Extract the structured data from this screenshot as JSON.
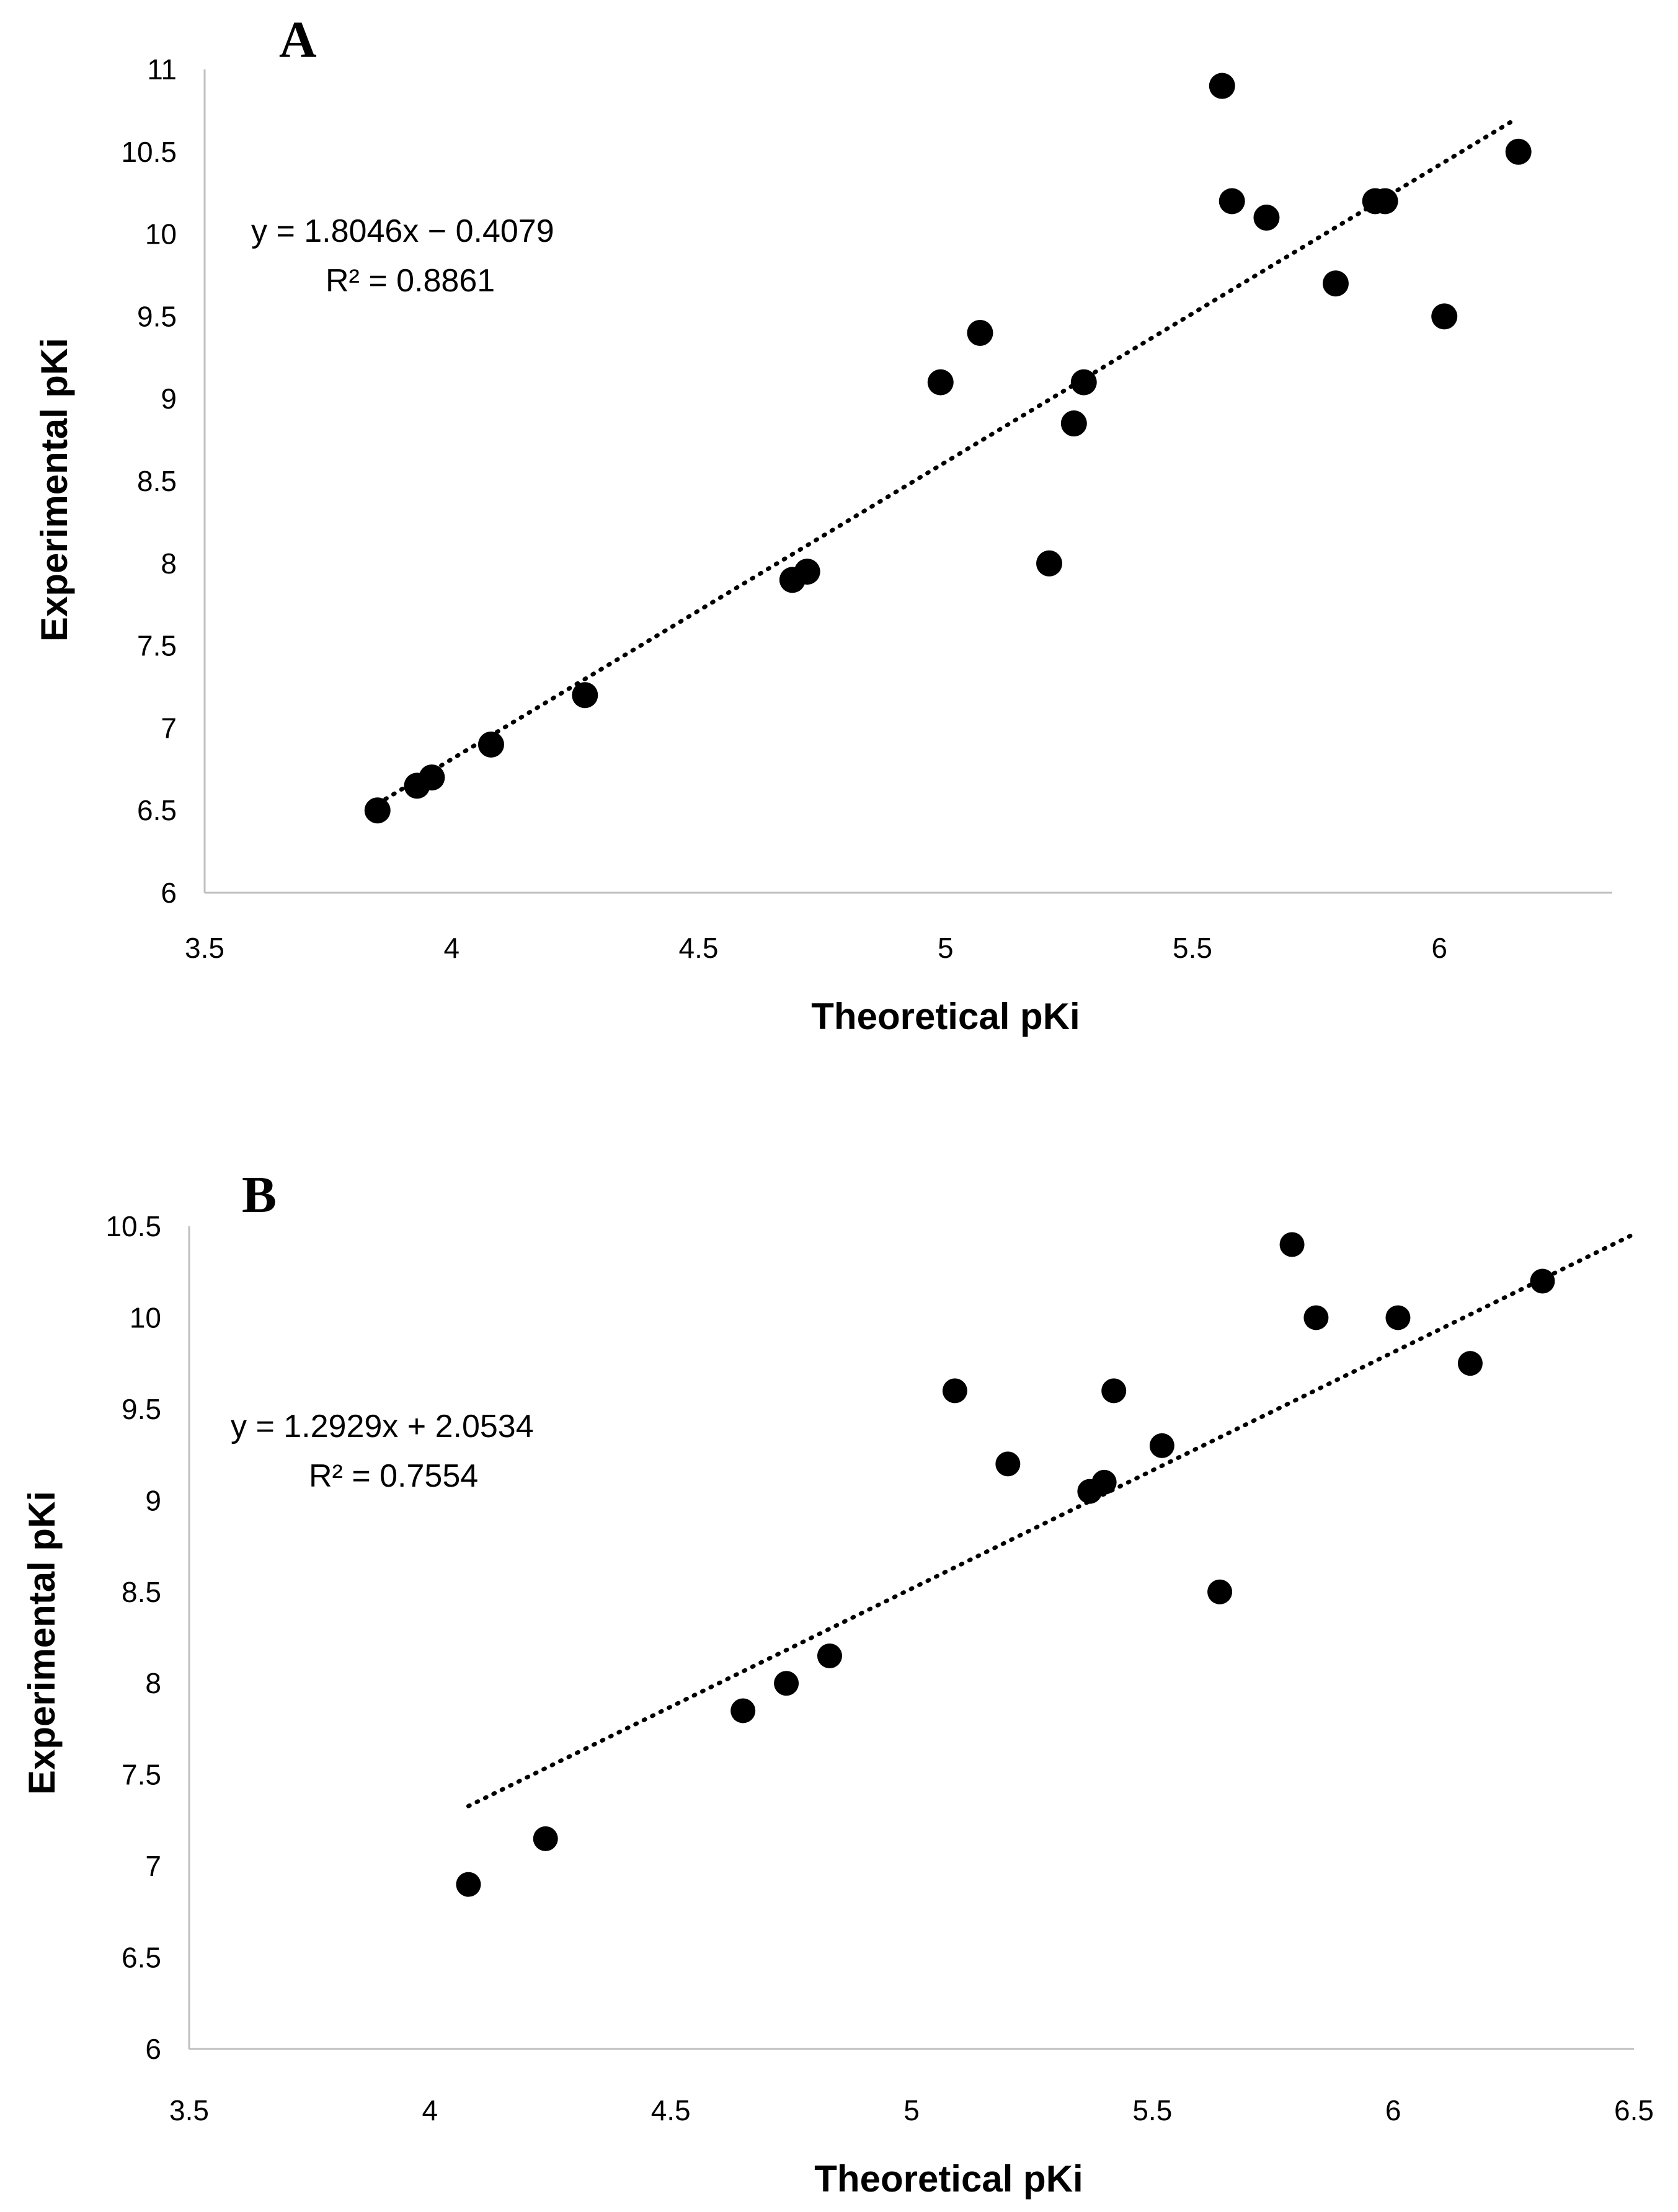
{
  "chart_data": [
    {
      "type": "scatter",
      "panel_label": "A",
      "xlabel": "Theoretical pKi",
      "ylabel": "Experimental pKi",
      "xlim": [
        3.5,
        6.35
      ],
      "ylim": [
        6,
        11
      ],
      "xticks": [
        "3.5",
        "4",
        "4.5",
        "5",
        "5.5",
        "6"
      ],
      "xtick_values": [
        3.5,
        4,
        4.5,
        5,
        5.5,
        6
      ],
      "yticks": [
        "6",
        "6.5",
        "7",
        "7.5",
        "8",
        "8.5",
        "9",
        "9.5",
        "10",
        "10.5",
        "11"
      ],
      "ytick_values": [
        6,
        6.5,
        7,
        7.5,
        8,
        8.5,
        9,
        9.5,
        10,
        10.5,
        11
      ],
      "trendline": {
        "type": "linear",
        "slope": 1.8046,
        "intercept": -0.4079,
        "x_range": [
          3.85,
          6.15
        ]
      },
      "equation": "y = 1.8046x − 0.4079",
      "r2_label": "R² = 0.8861",
      "points": [
        {
          "x": 3.85,
          "y": 6.5
        },
        {
          "x": 3.93,
          "y": 6.65
        },
        {
          "x": 3.96,
          "y": 6.7
        },
        {
          "x": 4.08,
          "y": 6.9
        },
        {
          "x": 4.27,
          "y": 7.2
        },
        {
          "x": 4.69,
          "y": 7.9
        },
        {
          "x": 4.72,
          "y": 7.95
        },
        {
          "x": 4.99,
          "y": 9.1
        },
        {
          "x": 5.07,
          "y": 9.4
        },
        {
          "x": 5.21,
          "y": 8.0
        },
        {
          "x": 5.26,
          "y": 8.85
        },
        {
          "x": 5.28,
          "y": 9.1
        },
        {
          "x": 5.56,
          "y": 10.9
        },
        {
          "x": 5.58,
          "y": 10.2
        },
        {
          "x": 5.65,
          "y": 10.1
        },
        {
          "x": 5.79,
          "y": 9.7
        },
        {
          "x": 5.87,
          "y": 10.2
        },
        {
          "x": 5.89,
          "y": 10.2
        },
        {
          "x": 6.01,
          "y": 9.5
        },
        {
          "x": 6.16,
          "y": 10.5
        }
      ]
    },
    {
      "type": "scatter",
      "panel_label": "B",
      "xlabel": "Theoretical pKi",
      "ylabel": "Experimental pKi",
      "xlim": [
        3.5,
        6.5
      ],
      "ylim": [
        6,
        10.5
      ],
      "xticks": [
        "3.5",
        "4",
        "4.5",
        "5",
        "5.5",
        "6",
        "6.5"
      ],
      "xtick_values": [
        3.5,
        4,
        4.5,
        5,
        5.5,
        6,
        6.5
      ],
      "yticks": [
        "6",
        "6.5",
        "7",
        "7.5",
        "8",
        "8.5",
        "9",
        "9.5",
        "10",
        "10.5"
      ],
      "ytick_values": [
        6,
        6.5,
        7,
        7.5,
        8,
        8.5,
        9,
        9.5,
        10,
        10.5
      ],
      "trendline": {
        "type": "linear",
        "slope": 1.2929,
        "intercept": 2.0534,
        "x_range": [
          4.08,
          6.5
        ]
      },
      "equation": "y = 1.2929x + 2.0534",
      "r2_label": "R² = 0.7554",
      "points": [
        {
          "x": 4.08,
          "y": 6.9
        },
        {
          "x": 4.24,
          "y": 7.15
        },
        {
          "x": 4.65,
          "y": 7.85
        },
        {
          "x": 4.74,
          "y": 8.0
        },
        {
          "x": 4.83,
          "y": 8.15
        },
        {
          "x": 5.09,
          "y": 9.6
        },
        {
          "x": 5.2,
          "y": 9.2
        },
        {
          "x": 5.37,
          "y": 9.05
        },
        {
          "x": 5.4,
          "y": 9.1
        },
        {
          "x": 5.42,
          "y": 9.6
        },
        {
          "x": 5.52,
          "y": 9.3
        },
        {
          "x": 5.64,
          "y": 8.5
        },
        {
          "x": 5.79,
          "y": 10.4
        },
        {
          "x": 5.84,
          "y": 10.0
        },
        {
          "x": 6.01,
          "y": 10.0
        },
        {
          "x": 6.16,
          "y": 9.75
        },
        {
          "x": 6.31,
          "y": 10.2
        }
      ]
    }
  ]
}
